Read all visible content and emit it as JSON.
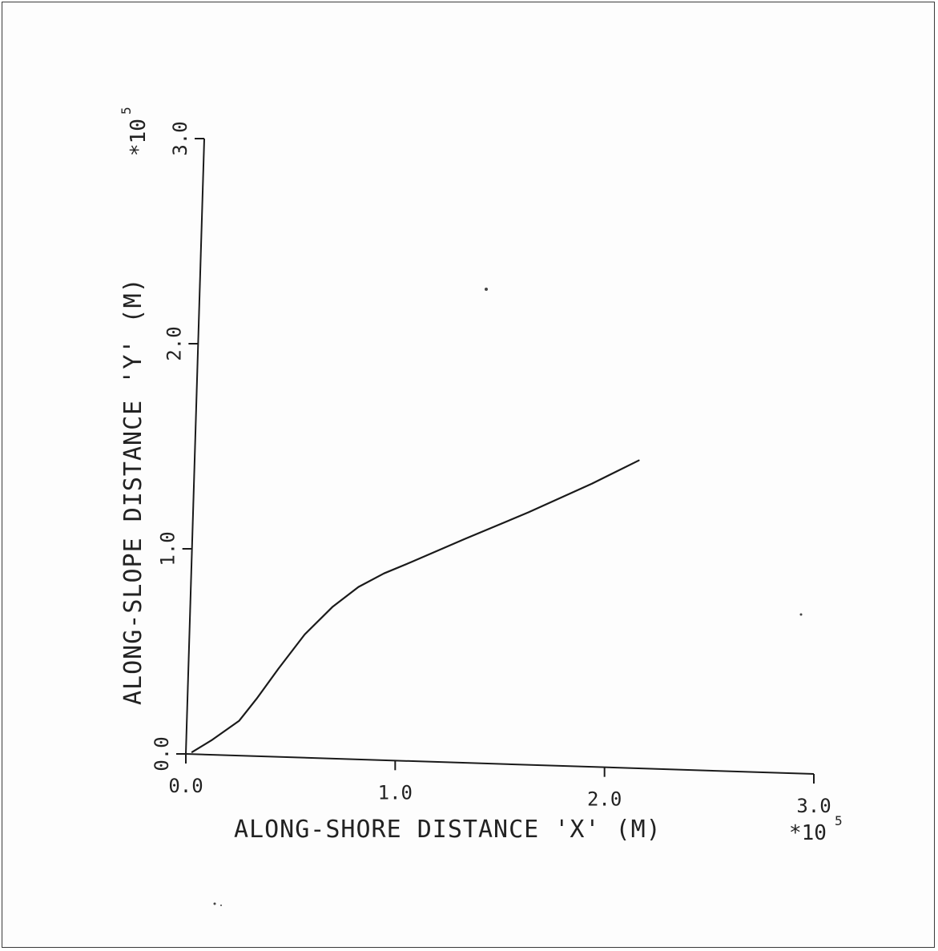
{
  "chart_data": {
    "type": "line",
    "xlabel": "ALONG-SHORE DISTANCE 'X' (M)",
    "ylabel": "ALONG-SLOPE DISTANCE 'Y' (M)",
    "x_multiplier": "*10",
    "x_exponent": "5",
    "y_multiplier": "*10",
    "y_exponent": "5",
    "xlim": [
      0,
      3.0
    ],
    "ylim": [
      0,
      3.0
    ],
    "x_ticks": [
      "0.0",
      "1.0",
      "2.0",
      "3.0"
    ],
    "y_ticks": [
      "0.0",
      "1.0",
      "2.0",
      "3.0"
    ],
    "grid": false,
    "line_color": "#1a1a1a",
    "series": [
      {
        "x": [
          0.03,
          0.12,
          0.25,
          0.33,
          0.43,
          0.55,
          0.68,
          0.8,
          0.92,
          1.05,
          1.3,
          1.6,
          1.9,
          2.12
        ],
        "y": [
          0.01,
          0.07,
          0.17,
          0.28,
          0.43,
          0.6,
          0.74,
          0.84,
          0.91,
          0.97,
          1.09,
          1.23,
          1.38,
          1.5
        ]
      }
    ]
  }
}
